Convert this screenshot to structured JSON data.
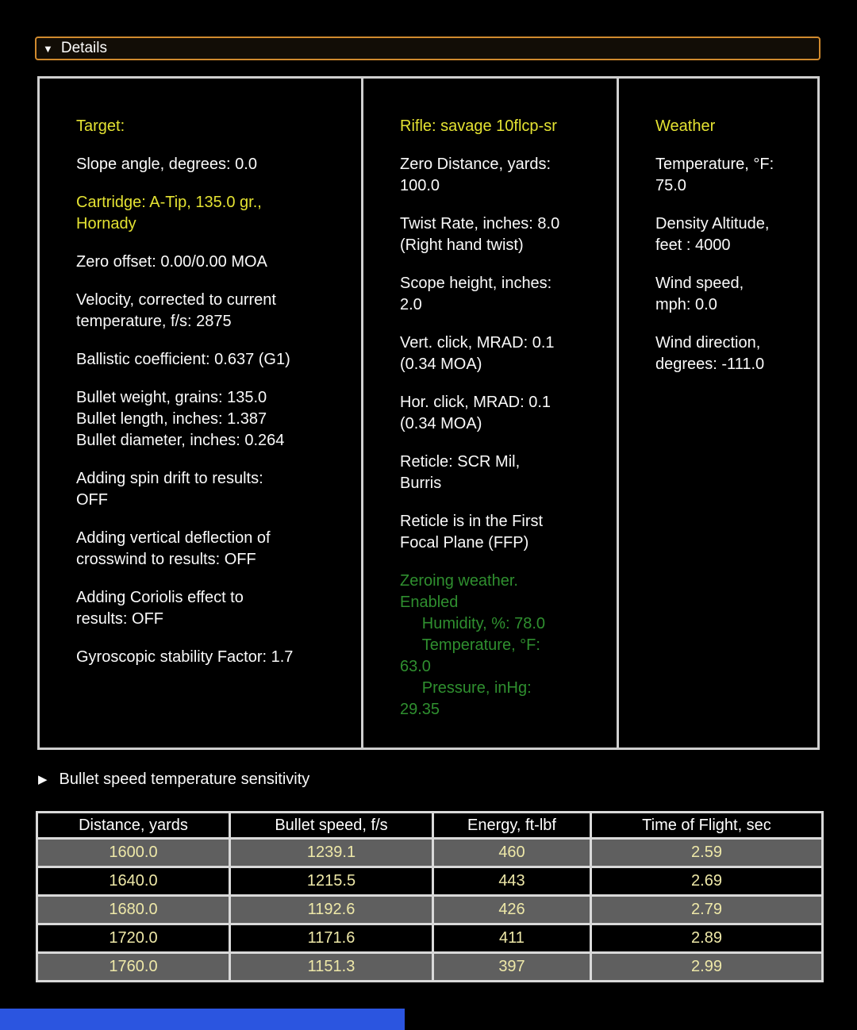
{
  "details_header": {
    "arrow": "▼",
    "label": "Details"
  },
  "panels": {
    "target": {
      "items": [
        {
          "text": "Target:",
          "color": "yellow"
        },
        {
          "text": "Slope angle, degrees: 0.0",
          "color": "white"
        },
        {
          "text": "Cartridge: A-Tip, 135.0 gr.,\nHornady",
          "color": "yellow"
        },
        {
          "text": "Zero offset: 0.00/0.00 MOA",
          "color": "white"
        },
        {
          "text": "Velocity, corrected to current\ntemperature, f/s: 2875",
          "color": "white"
        },
        {
          "text": "Ballistic coefficient: 0.637 (G1)",
          "color": "white"
        },
        {
          "text": "Bullet weight, grains: 135.0\nBullet length, inches: 1.387\nBullet diameter, inches: 0.264",
          "color": "white"
        },
        {
          "text": "Adding spin drift to results:\nOFF",
          "color": "white"
        },
        {
          "text": "Adding vertical deflection of\ncrosswind to results: OFF",
          "color": "white"
        },
        {
          "text": "Adding Coriolis effect to\nresults: OFF",
          "color": "white"
        },
        {
          "text": "Gyroscopic stability Factor: 1.7",
          "color": "white"
        }
      ]
    },
    "rifle": {
      "items": [
        {
          "text": "Rifle: savage 10flcp-sr",
          "color": "yellow"
        },
        {
          "text": "Zero Distance, yards:\n100.0",
          "color": "white"
        },
        {
          "text": "Twist Rate, inches: 8.0\n(Right hand twist)",
          "color": "white"
        },
        {
          "text": "Scope height, inches:\n2.0",
          "color": "white"
        },
        {
          "text": "Vert. click, MRAD: 0.1\n(0.34 MOA)",
          "color": "white"
        },
        {
          "text": "Hor. click, MRAD: 0.1\n(0.34 MOA)",
          "color": "white"
        },
        {
          "text": "Reticle: SCR Mil,\nBurris",
          "color": "white"
        },
        {
          "text": "Reticle is in the First\nFocal Plane (FFP)",
          "color": "white"
        },
        {
          "text": "Zeroing weather.\nEnabled\n     Humidity, %: 78.0\n     Temperature, °F:\n63.0\n     Pressure, inHg:\n29.35",
          "color": "green"
        }
      ]
    },
    "weather": {
      "items": [
        {
          "text": "Weather",
          "color": "yellow"
        },
        {
          "text": "Temperature, °F:\n75.0",
          "color": "white"
        },
        {
          "text": "Density Altitude,\nfeet : 4000",
          "color": "white"
        },
        {
          "text": "Wind speed,\nmph: 0.0",
          "color": "white"
        },
        {
          "text": "Wind direction,\ndegrees: -111.0",
          "color": "white"
        }
      ]
    }
  },
  "bullet_speed_section": {
    "arrow": "▶",
    "label": "Bullet speed temperature sensitivity"
  },
  "table": {
    "columns": [
      "Distance, yards",
      "Bullet speed, f/s",
      "Energy, ft-lbf",
      "Time of Flight, sec"
    ],
    "rows": [
      [
        "1600.0",
        "1239.1",
        "460",
        "2.59"
      ],
      [
        "1640.0",
        "1215.5",
        "443",
        "2.69"
      ],
      [
        "1680.0",
        "1192.6",
        "426",
        "2.79"
      ],
      [
        "1720.0",
        "1171.6",
        "411",
        "2.89"
      ],
      [
        "1760.0",
        "1151.3",
        "397",
        "2.99"
      ]
    ]
  },
  "colors": {
    "background": "#000000",
    "text_white": "#fafafa",
    "heading_yellow": "#e4e232",
    "zeroing_green": "#2f8f2f",
    "details_border_orange": "#d08a2e",
    "panel_border_gray": "#cfcfcf",
    "table_border_gray": "#d9d9d9",
    "table_row_gray": "#5f5f5f",
    "table_value_yellow": "#eee8a8",
    "bottom_bar_blue": "#2b55e0"
  }
}
